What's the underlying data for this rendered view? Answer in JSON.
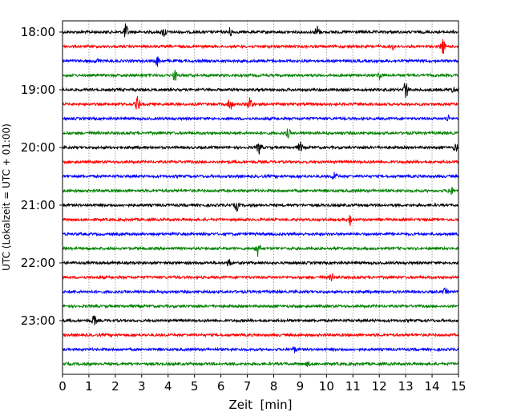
{
  "chart_data": {
    "type": "line",
    "subtype": "helicorder",
    "xlabel": "Zeit  [min]",
    "ylabel": "UTC (Lokalzeit = UTC + 01:00)",
    "xlim": [
      0,
      15
    ],
    "x_ticks": [
      "0",
      "1",
      "2",
      "3",
      "4",
      "5",
      "6",
      "7",
      "8",
      "9",
      "10",
      "11",
      "12",
      "13",
      "14",
      "15"
    ],
    "y_tick_labels": [
      "18:00",
      "19:00",
      "20:00",
      "21:00",
      "22:00",
      "23:00"
    ],
    "traces_per_hour": 4,
    "minutes_per_trace": 15,
    "trace_count": 24,
    "colors": [
      "#000000",
      "#ff0000",
      "#0000ff",
      "#008000"
    ],
    "grid": "vertical dotted",
    "events": [
      {
        "trace": 0,
        "minute": 2.4,
        "amp": 3
      },
      {
        "trace": 0,
        "minute": 3.85,
        "amp": 2
      },
      {
        "trace": 0,
        "minute": 6.35,
        "amp": 1.6
      },
      {
        "trace": 0,
        "minute": 9.65,
        "amp": 2.5
      },
      {
        "trace": 1,
        "minute": 12.5,
        "amp": 1
      },
      {
        "trace": 1,
        "minute": 14.4,
        "amp": 3
      },
      {
        "trace": 2,
        "minute": 1.3,
        "amp": 0.8
      },
      {
        "trace": 2,
        "minute": 3.6,
        "amp": 2
      },
      {
        "trace": 3,
        "minute": 4.25,
        "amp": 2
      },
      {
        "trace": 3,
        "minute": 12.0,
        "amp": 1.5
      },
      {
        "trace": 4,
        "minute": 13.0,
        "amp": 3.5
      },
      {
        "trace": 4,
        "minute": 14.8,
        "amp": 1
      },
      {
        "trace": 5,
        "minute": 2.85,
        "amp": 3
      },
      {
        "trace": 5,
        "minute": 6.35,
        "amp": 2.5
      },
      {
        "trace": 5,
        "minute": 7.1,
        "amp": 3
      },
      {
        "trace": 6,
        "minute": 14.6,
        "amp": 1
      },
      {
        "trace": 7,
        "minute": 8.55,
        "amp": 1.6
      },
      {
        "trace": 8,
        "minute": 7.45,
        "amp": 2.5
      },
      {
        "trace": 8,
        "minute": 9.0,
        "amp": 2
      },
      {
        "trace": 8,
        "minute": 14.9,
        "amp": 1.5
      },
      {
        "trace": 10,
        "minute": 10.3,
        "amp": 2
      },
      {
        "trace": 11,
        "minute": 14.7,
        "amp": 2
      },
      {
        "trace": 12,
        "minute": 6.6,
        "amp": 2
      },
      {
        "trace": 13,
        "minute": 10.9,
        "amp": 2
      },
      {
        "trace": 15,
        "minute": 7.4,
        "amp": 3
      },
      {
        "trace": 16,
        "minute": 6.3,
        "amp": 1.5
      },
      {
        "trace": 17,
        "minute": 10.2,
        "amp": 1.5
      },
      {
        "trace": 18,
        "minute": 14.5,
        "amp": 1
      },
      {
        "trace": 20,
        "minute": 1.2,
        "amp": 2
      },
      {
        "trace": 22,
        "minute": 8.8,
        "amp": 1
      },
      {
        "trace": 23,
        "minute": 9.3,
        "amp": 0.8
      }
    ]
  }
}
